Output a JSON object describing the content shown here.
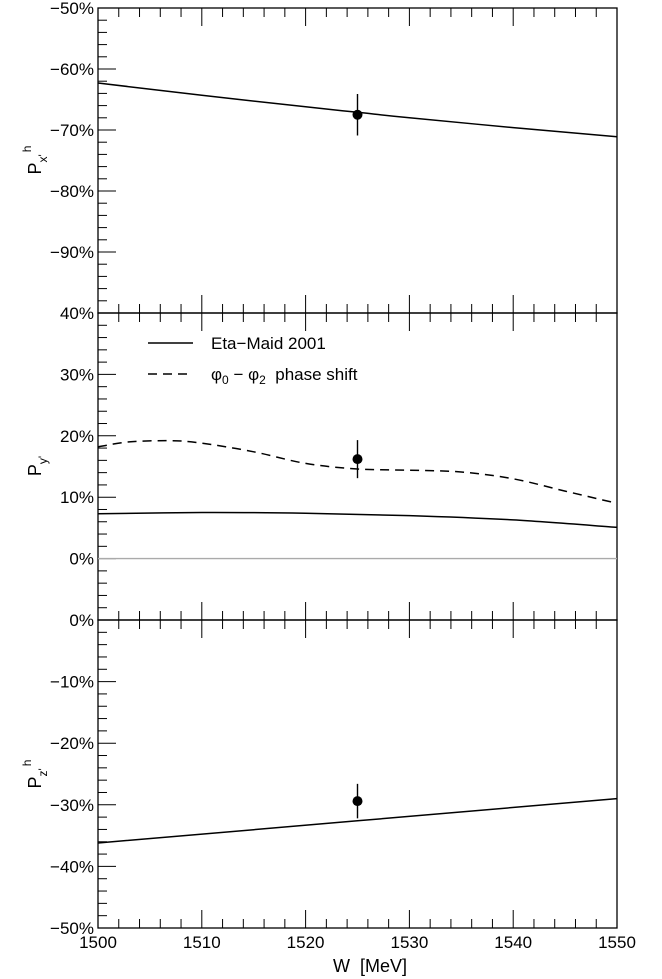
{
  "chart_data": [
    {
      "type": "line",
      "panel": "top",
      "ylabel": "P",
      "ylabel_sub": "x'",
      "ylabel_sup": "h",
      "xlim": [
        1500,
        1550
      ],
      "ylim": [
        -100,
        -50
      ],
      "yticks": [
        -90,
        -80,
        -70,
        -60,
        -50
      ],
      "ytick_labels": [
        "−90%",
        "−80%",
        "−70%",
        "−60%",
        "−50%"
      ],
      "grid": false,
      "series": [
        {
          "style": "solid",
          "color": "#000000",
          "x": [
            1500,
            1510,
            1520,
            1525,
            1530,
            1540,
            1550
          ],
          "y": [
            -62.3,
            -64.3,
            -66.2,
            -67.1,
            -68.0,
            -69.6,
            -71.1
          ]
        }
      ],
      "points": [
        {
          "x": 1525,
          "y": -67.5,
          "err": 3.4
        }
      ]
    },
    {
      "type": "line",
      "panel": "middle",
      "ylabel": "P",
      "ylabel_sub": "y'",
      "xlim": [
        1500,
        1550
      ],
      "ylim": [
        -10,
        40
      ],
      "yticks": [
        0,
        10,
        20,
        30,
        40
      ],
      "ytick_labels": [
        "0%",
        "10%",
        "20%",
        "30%",
        "40%"
      ],
      "grid": false,
      "legend": {
        "placement": "top-left",
        "entries": [
          {
            "style": "solid",
            "label": "Eta−Maid 2001"
          },
          {
            "style": "dashed",
            "label_parts": [
              "φ",
              "0",
              " − ",
              "φ",
              "2",
              "  phase shift"
            ]
          }
        ]
      },
      "series": [
        {
          "name": "Eta−Maid 2001",
          "style": "solid",
          "color": "#000000",
          "x": [
            1500,
            1510,
            1520,
            1530,
            1540,
            1550
          ],
          "y": [
            7.3,
            7.5,
            7.4,
            7.0,
            6.3,
            5.1
          ]
        },
        {
          "name": "φ0 − φ2 phase shift",
          "style": "dashed",
          "color": "#000000",
          "x": [
            1500,
            1503,
            1507,
            1510,
            1515,
            1520,
            1525,
            1530,
            1535,
            1540,
            1545,
            1550
          ],
          "y": [
            18.2,
            19.0,
            19.2,
            18.8,
            17.4,
            15.5,
            14.6,
            14.4,
            14.1,
            13.0,
            11.0,
            9.0
          ]
        },
        {
          "style": "solid",
          "color": "#aaaaaa",
          "x": [
            1500,
            1550
          ],
          "y": [
            0,
            0
          ]
        }
      ],
      "points": [
        {
          "x": 1525,
          "y": 16.2,
          "err": 3.1
        }
      ]
    },
    {
      "type": "line",
      "panel": "bottom",
      "ylabel": "P",
      "ylabel_sub": "z'",
      "ylabel_sup": "h",
      "xlabel": "W  [MeV]",
      "xlim": [
        1500,
        1550
      ],
      "ylim": [
        -50,
        0
      ],
      "xticks": [
        1500,
        1510,
        1520,
        1530,
        1540,
        1550
      ],
      "xtick_labels": [
        "1500",
        "1510",
        "1520",
        "1530",
        "1540",
        "1550"
      ],
      "yticks": [
        -50,
        -40,
        -30,
        -20,
        -10,
        0
      ],
      "ytick_labels": [
        "−50%",
        "−40%",
        "−30%",
        "−20%",
        "−10%",
        "0%"
      ],
      "grid": false,
      "series": [
        {
          "style": "solid",
          "color": "#000000",
          "x": [
            1500,
            1550
          ],
          "y": [
            -36.2,
            -29.0
          ]
        }
      ],
      "points": [
        {
          "x": 1525,
          "y": -29.4,
          "err": 2.8
        }
      ]
    }
  ]
}
